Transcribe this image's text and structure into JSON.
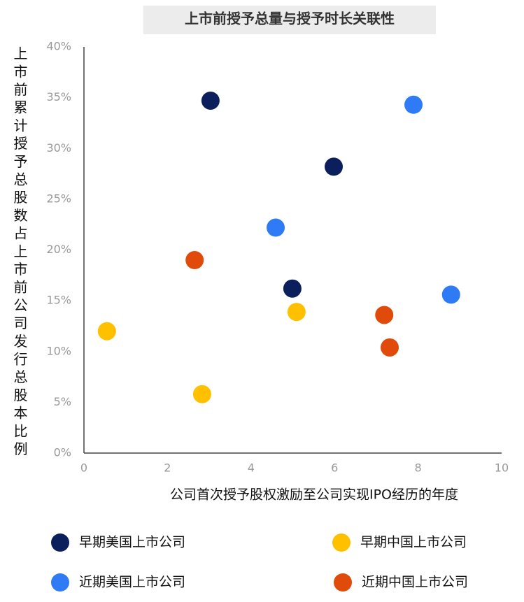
{
  "chart_data": {
    "type": "scatter",
    "title": "上市前授予总量与授予时长关联性",
    "x_label": "公司首次授予股权激励至公司实现IPO经历的年度",
    "y_label": "上市前累计授予总股数占上市前公司发行总股本比例",
    "xlim": [
      0,
      10
    ],
    "xticks": [
      0,
      2,
      4,
      6,
      8,
      10
    ],
    "ylim": [
      0,
      40
    ],
    "yticks": [
      {
        "value": 0,
        "label": "0%"
      },
      {
        "value": 5,
        "label": "5%"
      },
      {
        "value": 10,
        "label": "10%"
      },
      {
        "value": 15,
        "label": "15%"
      },
      {
        "value": 20,
        "label": "20%"
      },
      {
        "value": 25,
        "label": "25%"
      },
      {
        "value": 30,
        "label": "30%"
      },
      {
        "value": 35,
        "label": "35%"
      },
      {
        "value": 40,
        "label": "40%"
      }
    ],
    "grid": false,
    "series": [
      {
        "name": "早期美国上市公司",
        "color": "#0b1f5c",
        "x": [
          3.03,
          5.98,
          4.99
        ],
        "values": [
          34.7,
          28.2,
          16.2
        ]
      },
      {
        "name": "早期中国上市公司",
        "color": "#ffc000",
        "x": [
          0.55,
          2.83,
          5.09
        ],
        "values": [
          12.0,
          5.8,
          13.9
        ]
      },
      {
        "name": "近期美国上市公司",
        "color": "#2f7bf5",
        "x": [
          7.89,
          4.59,
          8.79
        ],
        "values": [
          34.3,
          22.2,
          15.6
        ]
      },
      {
        "name": "近期中国上市公司",
        "color": "#e04a0a",
        "x": [
          2.65,
          7.19,
          7.32
        ],
        "values": [
          19.0,
          13.6,
          10.4
        ]
      }
    ]
  }
}
